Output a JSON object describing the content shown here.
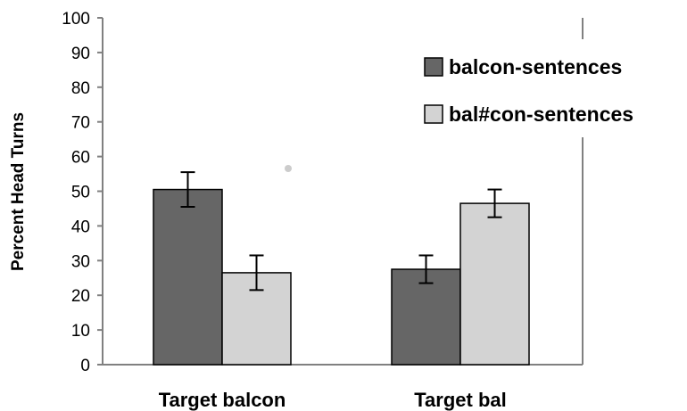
{
  "chart_data": {
    "type": "bar",
    "title": "",
    "xlabel": "",
    "ylabel": "Percent Head Turns",
    "ylim": [
      0,
      100
    ],
    "yticks": [
      0,
      10,
      20,
      30,
      40,
      50,
      60,
      70,
      80,
      90,
      100
    ],
    "categories": [
      "Target balcon",
      "Target bal"
    ],
    "series": [
      {
        "name": "balcon-sentences",
        "values": [
          50.5,
          27.5
        ],
        "errors": [
          5,
          4
        ],
        "color": "#666666"
      },
      {
        "name": "bal#con-sentences",
        "values": [
          26.5,
          46.5
        ],
        "errors": [
          5,
          4
        ],
        "color": "#d3d3d3"
      }
    ],
    "legend_position": "top-right",
    "grid": false
  }
}
